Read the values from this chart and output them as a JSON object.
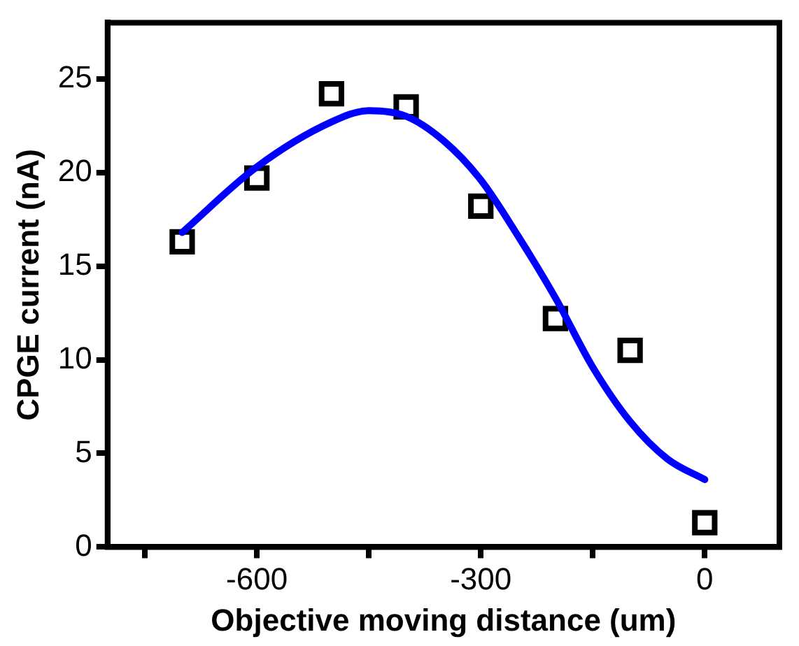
{
  "chart_data": {
    "type": "scatter",
    "xlabel": "Objective moving distance (um)",
    "ylabel": "CPGE current (nA)",
    "xlim": [
      -800,
      100
    ],
    "xticks": [
      {
        "value": -750,
        "label": null
      },
      -600,
      {
        "value": -450,
        "label": null
      },
      -300,
      {
        "value": -150,
        "label": null
      },
      0
    ],
    "ylim": [
      0,
      28
    ],
    "yticks": [
      0,
      5,
      10,
      15,
      20,
      25
    ],
    "grid": false,
    "legend": false,
    "marker": "square",
    "series": [
      {
        "type": "scatter",
        "color": "#000000",
        "x": [
          -700,
          -600,
          -500,
          -400,
          -300,
          -200,
          -100,
          0
        ],
        "values": [
          16.3,
          19.7,
          24.2,
          23.5,
          18.2,
          12.2,
          10.5,
          1.3
        ]
      },
      {
        "type": "line",
        "color": "#0000ff",
        "marker": "none",
        "line_style": "solid",
        "x": [
          -700,
          -600,
          -500,
          -450,
          -400,
          -350,
          -300,
          -250,
          -200,
          -150,
          -100,
          -50,
          0
        ],
        "values": [
          16.8,
          20.3,
          22.7,
          23.3,
          23.0,
          21.7,
          19.6,
          16.6,
          13.3,
          9.6,
          6.7,
          4.7,
          3.6
        ]
      }
    ]
  }
}
